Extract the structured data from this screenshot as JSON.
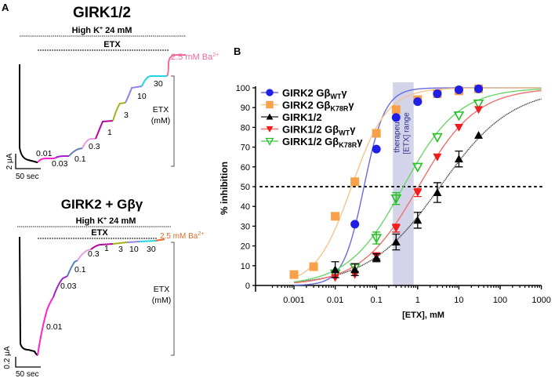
{
  "panel_a": {
    "label": "A",
    "top": {
      "title": "GIRK1/2",
      "high_k": "High K",
      "high_k_sup": "+",
      "high_k_rest": " 24 mM",
      "etx_label": "ETX",
      "ba_label": "2.5 mM Ba",
      "ba_sup": "2+",
      "ba_color": "#f06a9c",
      "bracket_label_1": "ETX",
      "bracket_label_2": "(mM)",
      "scale_y": "2 μA",
      "scale_x": "50 sec",
      "steps": [
        {
          "label": "0.01",
          "color": "#ff22cc"
        },
        {
          "label": "0.03",
          "color": "#a020d0"
        },
        {
          "label": "0.1",
          "color": "#5a7fb5"
        },
        {
          "label": "0.3",
          "color": "#e89ae6"
        },
        {
          "label": "1",
          "color": "#b0089a"
        },
        {
          "label": "3",
          "color": "#a5b013"
        },
        {
          "label": "10",
          "color": "#8a86e8"
        },
        {
          "label": "30",
          "color": "#22d6df"
        }
      ]
    },
    "bottom": {
      "title": "GIRK2 + Gβγ",
      "high_k": "High K",
      "high_k_sup": "+",
      "high_k_rest": " 24 mM",
      "etx_label": "ETX",
      "ba_label": "2.5 mM Ba",
      "ba_sup": "2+",
      "ba_color": "#e06a2c",
      "bracket_label_1": "ETX",
      "bracket_label_2": "(mM)",
      "scale_y": "0.2 μA",
      "scale_x": "50 sec",
      "steps": [
        {
          "label": "0.01",
          "color": "#ff22cc"
        },
        {
          "label": "0.03",
          "color": "#a020d0"
        },
        {
          "label": "0.1",
          "color": "#5a7fb5"
        },
        {
          "label": "0.3",
          "color": "#e89ae6"
        },
        {
          "label": "1",
          "color": "#b0089a"
        },
        {
          "label": "3",
          "color": "#a5b013"
        },
        {
          "label": "10",
          "color": "#8a86e8"
        },
        {
          "label": "30",
          "color": "#22d6df"
        }
      ]
    }
  },
  "chart_data": {
    "panel_label": "B",
    "type": "scatter",
    "title": "",
    "xlabel": "[ETX], mM",
    "ylabel": "% inhibition",
    "xscale": "log",
    "xlim": [
      0.0003,
      1000
    ],
    "ylim": [
      0,
      100
    ],
    "xticks": [
      "0.001",
      "0.01",
      "0.1",
      "1",
      "10",
      "100",
      "1000"
    ],
    "xtick_values": [
      0.001,
      0.01,
      0.1,
      1,
      10,
      100,
      1000
    ],
    "yticks": [
      0,
      10,
      20,
      30,
      40,
      50,
      60,
      70,
      80,
      90,
      100
    ],
    "reference_line": {
      "y": 50,
      "style": "dotted"
    },
    "shaded_region": {
      "x": [
        0.25,
        0.8
      ],
      "label_1": "therapeutic",
      "label_2": "[ETX] range",
      "color": "#d3d4ea"
    },
    "legend_position": "top-left",
    "series": [
      {
        "name": "GIRK2 Gβ",
        "sub": "WT",
        "tail": "γ",
        "marker": "circle",
        "color": "#1f1fe6",
        "line_color": "#6a6ae0",
        "x": [
          0.03,
          0.1,
          0.3,
          1,
          3,
          10,
          30
        ],
        "y": [
          31,
          69,
          85,
          93,
          97,
          99,
          99.5
        ],
        "err": [
          0,
          0,
          0,
          0,
          0,
          0,
          0
        ],
        "ic50": 0.05,
        "hill": 1.7,
        "top": 100
      },
      {
        "name": "GIRK2 Gβ",
        "sub": "K78R",
        "tail": "γ",
        "marker": "square",
        "color": "#f7a14a",
        "line_color": "#f5c48f",
        "x": [
          0.001,
          0.003,
          0.01,
          0.03,
          0.1,
          0.3,
          1,
          3,
          10,
          30
        ],
        "y": [
          5.5,
          9.5,
          35,
          52.5,
          77,
          89,
          94,
          97,
          98.5,
          99.5
        ],
        "err": [
          0,
          0,
          0,
          0,
          0,
          0,
          0,
          0,
          0,
          0
        ],
        "ic50": 0.025,
        "hill": 1.0,
        "top": 100
      },
      {
        "name": "GIRK1/2",
        "sub": "",
        "tail": "",
        "marker": "triangle-up",
        "color": "#000000",
        "line_color": "#444444",
        "x": [
          0.01,
          0.03,
          0.1,
          0.3,
          1,
          3,
          10,
          30
        ],
        "y": [
          8,
          8,
          14,
          22,
          33,
          47,
          64,
          76
        ],
        "err": [
          4,
          3,
          2,
          4,
          4,
          5,
          4,
          0
        ],
        "ic50": 3.5,
        "hill": 0.5,
        "top": 100
      },
      {
        "name": "GIRK1/2 Gβ",
        "sub": "WT",
        "tail": "γ",
        "marker": "triangle-down",
        "color": "#f21c1c",
        "line_color": "#f07070",
        "x": [
          0.01,
          0.03,
          0.1,
          0.3,
          1,
          3,
          10,
          30
        ],
        "y": [
          4,
          5.5,
          15,
          29,
          47,
          65,
          80,
          89
        ],
        "err": [
          0,
          0,
          1.5,
          2,
          2,
          0,
          0,
          0
        ],
        "ic50": 1.05,
        "hill": 0.62,
        "top": 100
      },
      {
        "name": "GIRK1/2 Gβ",
        "sub": "K78R",
        "tail": "γ",
        "marker": "triangle-down-open",
        "color": "#22c022",
        "line_color": "#6ad66a",
        "x": [
          0.01,
          0.03,
          0.1,
          0.3,
          1,
          3,
          10,
          30
        ],
        "y": [
          6,
          9,
          24,
          44,
          60,
          75,
          86,
          92
        ],
        "err": [
          0,
          2,
          3,
          3,
          0,
          0,
          0,
          0
        ],
        "ic50": 0.45,
        "hill": 0.65,
        "top": 100
      }
    ]
  }
}
